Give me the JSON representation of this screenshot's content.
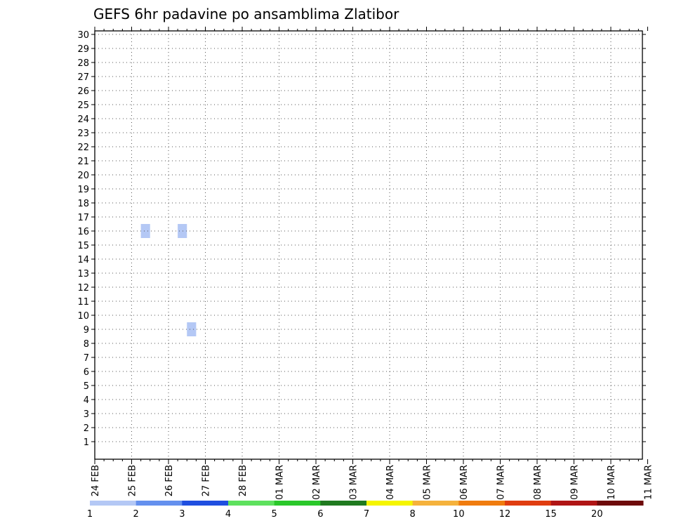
{
  "chart_data": {
    "type": "heatmap",
    "title": "GEFS 6hr padavine po ansamblima Zlatibor",
    "xlabel": "",
    "ylabel": "",
    "x_ticks": [
      "24 FEB",
      "25 FEB",
      "26 FEB",
      "27 FEB",
      "28 FEB",
      "01 MAR",
      "02 MAR",
      "03 MAR",
      "04 MAR",
      "05 MAR",
      "06 MAR",
      "07 MAR",
      "08 MAR",
      "09 MAR",
      "10 MAR",
      "11 MAR"
    ],
    "x_step": "6hr",
    "y_ticks": [
      1,
      2,
      3,
      4,
      5,
      6,
      7,
      8,
      9,
      10,
      11,
      12,
      13,
      14,
      15,
      16,
      17,
      18,
      19,
      20,
      21,
      22,
      23,
      24,
      25,
      26,
      27,
      28,
      29,
      30
    ],
    "ylim": [
      0,
      30
    ],
    "grid": true,
    "legend": {
      "position": "bottom",
      "labels": [
        "1",
        "2",
        "3",
        "4",
        "5",
        "6",
        "7",
        "8",
        "10",
        "12",
        "15",
        "20"
      ],
      "colors": [
        "#b4c8f5",
        "#6490ee",
        "#1f4fe0",
        "#5ee15e",
        "#2ac82a",
        "#1f7a1f",
        "#f5f500",
        "#f5b23c",
        "#f07c0f",
        "#e03d10",
        "#b01515",
        "#6e0a0a"
      ]
    },
    "cells": [
      {
        "date": "25 FEB",
        "step": 1,
        "member": 16,
        "value": 1
      },
      {
        "date": "26 FEB",
        "step": 1,
        "member": 16,
        "value": 1
      },
      {
        "date": "26 FEB",
        "step": 2,
        "member": 9,
        "value": 1
      }
    ]
  }
}
